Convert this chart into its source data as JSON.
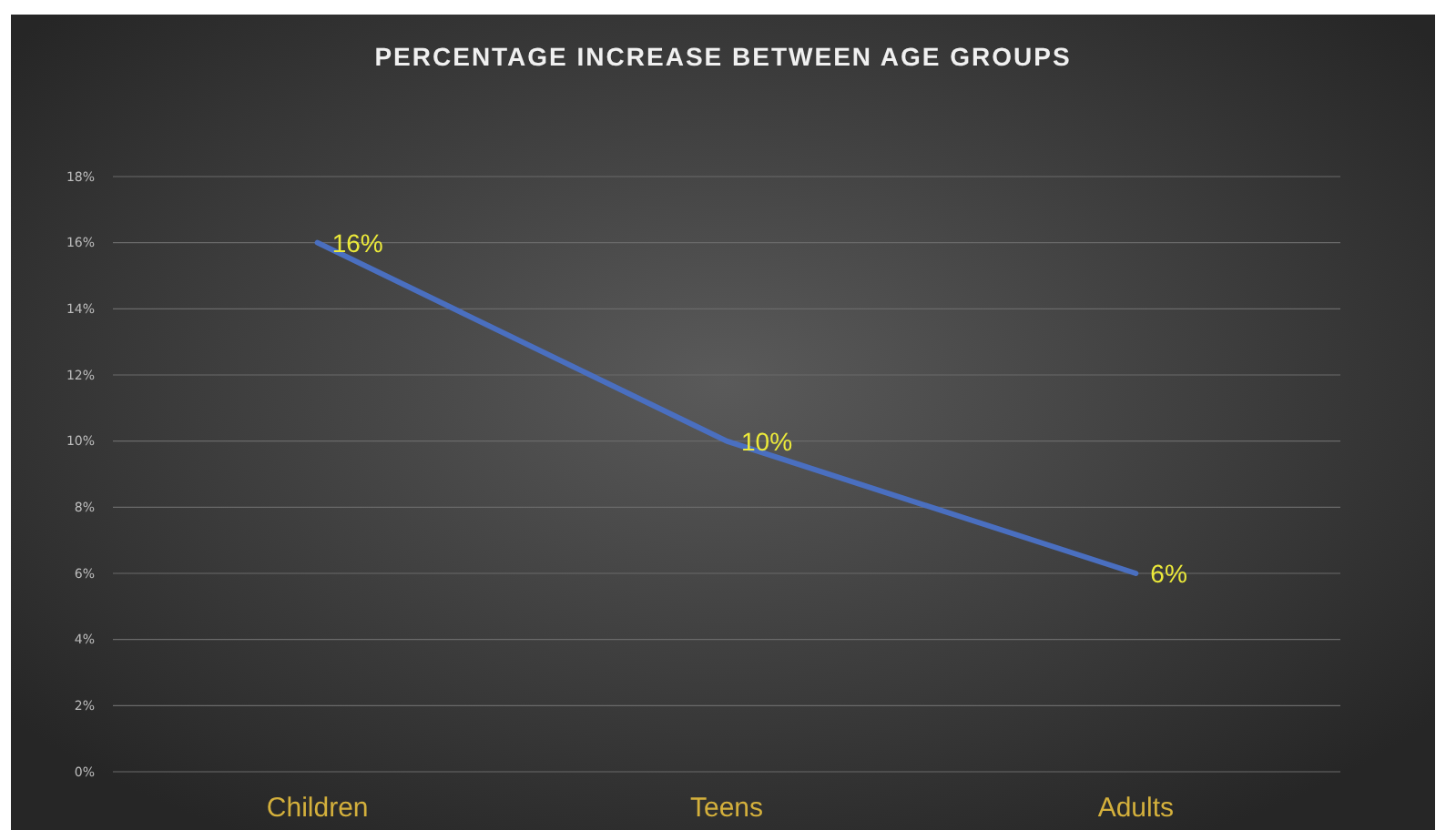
{
  "chart_data": {
    "type": "line",
    "title": "PERCENTAGE INCREASE BETWEEN AGE GROUPS",
    "categories": [
      "Children",
      "Teens",
      "Adults"
    ],
    "series": [
      {
        "color": "#4a6fc0",
        "values": [
          16,
          10,
          6
        ],
        "value_labels": [
          "16%",
          "10%",
          "6%"
        ]
      }
    ],
    "ylim": [
      0,
      18
    ],
    "yticks": [
      {
        "value": 0,
        "label": "0%"
      },
      {
        "value": 2,
        "label": "2%"
      },
      {
        "value": 4,
        "label": "4%"
      },
      {
        "value": 6,
        "label": "6%"
      },
      {
        "value": 8,
        "label": "8%"
      },
      {
        "value": 10,
        "label": "10%"
      },
      {
        "value": 12,
        "label": "12%"
      },
      {
        "value": 14,
        "label": "14%"
      },
      {
        "value": 16,
        "label": "16%"
      },
      {
        "value": 18,
        "label": "18%"
      }
    ],
    "grid": "y",
    "marker": "none",
    "line_style": "solid"
  }
}
